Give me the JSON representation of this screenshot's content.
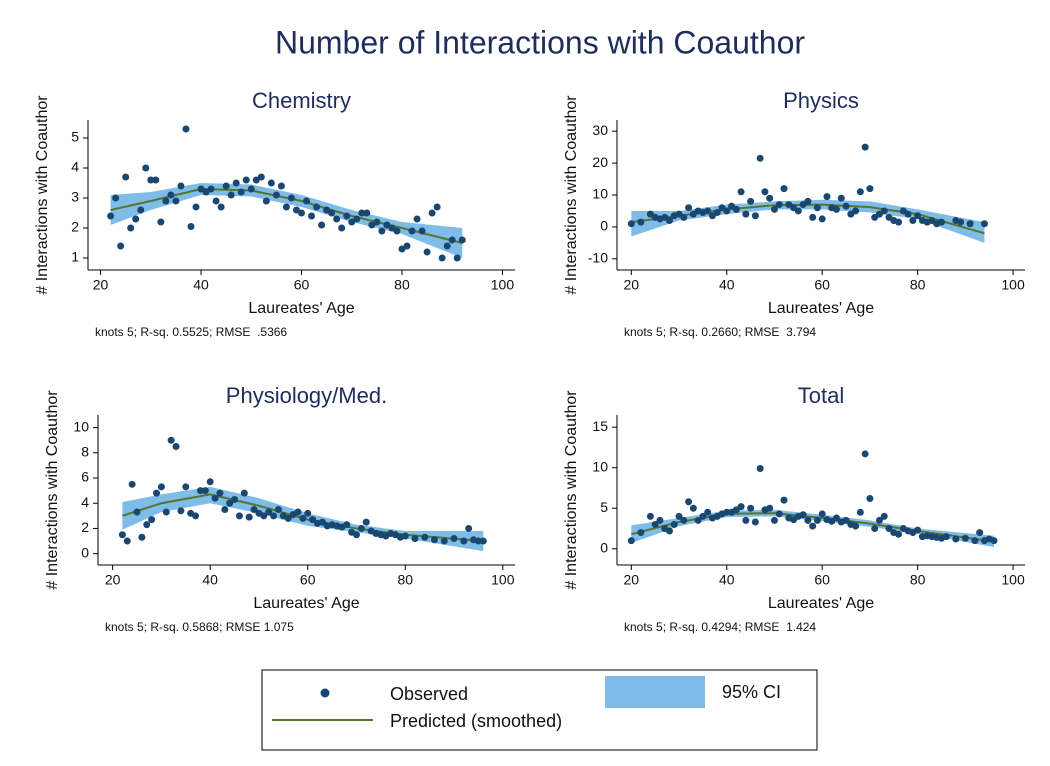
{
  "title": "Number of Interactions with Coauthor",
  "legend": [
    "Observed",
    "Predicted (smoothed)",
    "95% CI"
  ],
  "chart_data": [
    {
      "type": "scatter",
      "title": "Chemistry",
      "x_label": "Laureates' Age",
      "y_label": "# Interactions with Coauthor",
      "note": "knots 5; R-sq. 0.5525; RMSE  .5366",
      "xlim": [
        17.5,
        102.5
      ],
      "xticks": [
        20,
        40,
        60,
        80,
        100
      ],
      "ylim": [
        0.6,
        5.6
      ],
      "yticks": [
        1,
        2,
        3,
        4,
        5
      ],
      "series": [
        {
          "type": "band",
          "color": "#7fbde8",
          "x": [
            22,
            30,
            40,
            50,
            60,
            70,
            80,
            92
          ],
          "lower": [
            2.1,
            2.6,
            3.1,
            3.05,
            2.7,
            2.2,
            1.8,
            1.0
          ],
          "upper": [
            3.1,
            3.2,
            3.5,
            3.45,
            3.1,
            2.6,
            2.2,
            2.0
          ]
        },
        {
          "type": "line",
          "color": "#55752f",
          "x": [
            22,
            30,
            40,
            50,
            60,
            70,
            80,
            92
          ],
          "values": [
            2.6,
            2.9,
            3.3,
            3.25,
            2.9,
            2.4,
            2.0,
            1.5
          ]
        },
        {
          "type": "dots",
          "color": "#1a476f",
          "x": [
            22,
            23,
            24,
            25,
            26,
            27,
            28,
            29,
            30,
            31,
            32,
            33,
            34,
            35,
            36,
            37,
            38,
            39,
            40,
            41,
            42,
            43,
            44,
            45,
            46,
            47,
            48,
            49,
            50,
            51,
            52,
            53,
            54,
            55,
            56,
            57,
            58,
            59,
            60,
            61,
            62,
            63,
            64,
            65,
            66,
            67,
            68,
            69,
            70,
            71,
            72,
            73,
            74,
            75,
            76,
            77,
            78,
            79,
            80,
            81,
            82,
            83,
            84,
            85,
            86,
            87,
            88,
            89,
            90,
            91,
            92
          ],
          "values": [
            2.4,
            3.0,
            1.4,
            3.7,
            2.0,
            2.3,
            2.6,
            4.0,
            3.6,
            3.6,
            2.2,
            2.9,
            3.1,
            2.9,
            3.4,
            5.3,
            2.05,
            2.7,
            3.3,
            3.2,
            3.3,
            2.9,
            2.7,
            3.4,
            3.1,
            3.5,
            3.2,
            3.6,
            3.3,
            3.6,
            3.7,
            2.9,
            3.5,
            3.1,
            3.4,
            2.7,
            3.0,
            2.6,
            2.5,
            2.9,
            2.4,
            2.7,
            2.1,
            2.6,
            2.5,
            2.3,
            2.0,
            2.4,
            2.2,
            2.3,
            2.5,
            2.5,
            2.1,
            2.2,
            1.9,
            2.1,
            2.0,
            1.9,
            1.3,
            1.4,
            1.9,
            2.3,
            1.9,
            1.2,
            2.5,
            2.7,
            1.0,
            1.4,
            1.6,
            1.0,
            1.6
          ]
        }
      ]
    },
    {
      "type": "scatter",
      "title": "Physics",
      "x_label": "Laureates' Age",
      "y_label": "# Interactions with Coauthor",
      "note": "knots 5; R-sq. 0.2660; RMSE  3.794",
      "xlim": [
        17,
        102.5
      ],
      "xticks": [
        20,
        40,
        60,
        80,
        100
      ],
      "ylim": [
        -13.5,
        33.5
      ],
      "yticks": [
        -10,
        0,
        10,
        20,
        30
      ],
      "series": [
        {
          "type": "band",
          "color": "#7fbde8",
          "x": [
            20,
            30,
            40,
            50,
            60,
            70,
            80,
            94
          ],
          "lower": [
            -3,
            2,
            4,
            5.5,
            5.5,
            4.5,
            2.5,
            -5
          ],
          "upper": [
            5,
            5,
            7,
            8,
            8.5,
            8,
            5.5,
            1.5
          ]
        },
        {
          "type": "line",
          "color": "#55752f",
          "x": [
            20,
            30,
            40,
            50,
            60,
            70,
            80,
            94
          ],
          "values": [
            1.5,
            3.5,
            5.5,
            6.8,
            7.0,
            6.2,
            4.0,
            -2
          ]
        },
        {
          "type": "dots",
          "color": "#1a476f",
          "x": [
            20,
            22,
            24,
            25,
            26,
            27,
            28,
            29,
            30,
            31,
            32,
            33,
            34,
            35,
            36,
            37,
            38,
            39,
            40,
            41,
            42,
            43,
            44,
            45,
            46,
            47,
            48,
            49,
            50,
            51,
            52,
            53,
            54,
            55,
            56,
            57,
            58,
            59,
            60,
            61,
            62,
            63,
            64,
            65,
            66,
            67,
            68,
            69,
            70,
            71,
            72,
            73,
            74,
            75,
            76,
            77,
            78,
            79,
            80,
            81,
            82,
            83,
            84,
            85,
            88,
            89,
            91,
            94
          ],
          "values": [
            1,
            1.5,
            4,
            3,
            2.5,
            3,
            2,
            3.5,
            4,
            3,
            6,
            4,
            5,
            4.5,
            5,
            3.5,
            4.5,
            6,
            5,
            6.5,
            5.5,
            11,
            4,
            8,
            3.5,
            21.5,
            11,
            9,
            5.5,
            7,
            12,
            7,
            6,
            5,
            7,
            8,
            3,
            6,
            2.5,
            9.5,
            6,
            5.5,
            9,
            6.5,
            4,
            5,
            11,
            25,
            12,
            3,
            4,
            5,
            3,
            2,
            1.5,
            5,
            4,
            2,
            3.5,
            2,
            1.5,
            2,
            1,
            1.5,
            2,
            1.5,
            1,
            1
          ]
        }
      ]
    },
    {
      "type": "scatter",
      "title": "Physiology/Med.",
      "x_label": "Laureates' Age",
      "y_label": "# Interactions with Coauthor",
      "note": "knots 5; R-sq. 0.5868; RMSE 1.075",
      "xlim": [
        17,
        102.5
      ],
      "xticks": [
        20,
        40,
        60,
        80,
        100
      ],
      "ylim": [
        -0.9,
        11
      ],
      "yticks": [
        0,
        2,
        4,
        6,
        8,
        10
      ],
      "series": [
        {
          "type": "band",
          "color": "#7fbde8",
          "x": [
            22,
            30,
            40,
            50,
            60,
            70,
            80,
            96
          ],
          "lower": [
            1.9,
            3.3,
            4.0,
            3.2,
            2.2,
            1.7,
            1.2,
            0.2
          ],
          "upper": [
            4.1,
            4.7,
            5.3,
            4.4,
            3.2,
            2.3,
            1.8,
            1.8
          ]
        },
        {
          "type": "line",
          "color": "#55752f",
          "x": [
            22,
            30,
            40,
            50,
            60,
            70,
            80,
            96
          ],
          "values": [
            3.0,
            4.0,
            4.7,
            3.8,
            2.7,
            2.0,
            1.5,
            1.0
          ]
        },
        {
          "type": "dots",
          "color": "#1a476f",
          "x": [
            22,
            23,
            24,
            25,
            26,
            27,
            28,
            29,
            30,
            31,
            32,
            33,
            34,
            35,
            36,
            37,
            38,
            39,
            40,
            41,
            42,
            43,
            44,
            45,
            46,
            47,
            48,
            49,
            50,
            51,
            52,
            53,
            54,
            55,
            56,
            57,
            58,
            59,
            60,
            61,
            62,
            63,
            64,
            65,
            66,
            67,
            68,
            69,
            70,
            71,
            72,
            73,
            74,
            75,
            76,
            77,
            78,
            79,
            80,
            82,
            84,
            86,
            88,
            90,
            92,
            93,
            94,
            95,
            96
          ],
          "values": [
            1.5,
            1.0,
            5.5,
            3.3,
            1.3,
            2.3,
            2.7,
            4.8,
            5.3,
            3.3,
            9.0,
            8.5,
            3.4,
            5.3,
            3.2,
            3.0,
            5.0,
            5.0,
            5.7,
            4.4,
            4.8,
            3.5,
            4.0,
            4.3,
            3.0,
            4.8,
            2.9,
            3.5,
            3.2,
            3.0,
            3.3,
            3.0,
            3.5,
            3.0,
            2.8,
            3.1,
            3.3,
            2.8,
            3.2,
            2.7,
            2.4,
            2.5,
            2.2,
            2.3,
            2.2,
            2.1,
            2.3,
            1.7,
            1.5,
            2.0,
            2.5,
            1.8,
            1.6,
            1.5,
            1.4,
            1.6,
            1.5,
            1.3,
            1.4,
            1.2,
            1.3,
            1.1,
            1.0,
            1.2,
            1.0,
            2.0,
            1.1,
            1.0,
            1.0
          ]
        }
      ]
    },
    {
      "type": "scatter",
      "title": "Total",
      "x_label": "Laureates' Age",
      "y_label": "# Interactions with Coauthor",
      "note": "knots 5; R-sq. 0.4294; RMSE  1.424",
      "xlim": [
        17,
        102.5
      ],
      "xticks": [
        20,
        40,
        60,
        80,
        100
      ],
      "ylim": [
        -2,
        16.5
      ],
      "yticks": [
        0,
        5,
        10,
        15
      ],
      "series": [
        {
          "type": "band",
          "color": "#7fbde8",
          "x": [
            20,
            30,
            40,
            50,
            60,
            70,
            80,
            96
          ],
          "lower": [
            0.7,
            2.8,
            3.9,
            4.0,
            3.4,
            2.7,
            1.9,
            0.2
          ],
          "upper": [
            2.9,
            3.8,
            4.7,
            4.8,
            4.2,
            3.5,
            2.5,
            1.6
          ]
        },
        {
          "type": "line",
          "color": "#55752f",
          "x": [
            20,
            30,
            40,
            50,
            60,
            70,
            80,
            96
          ],
          "values": [
            1.8,
            3.3,
            4.3,
            4.4,
            3.8,
            3.1,
            2.2,
            0.9
          ]
        },
        {
          "type": "dots",
          "color": "#1a476f",
          "x": [
            20,
            22,
            24,
            25,
            26,
            27,
            28,
            29,
            30,
            31,
            32,
            33,
            34,
            35,
            36,
            37,
            38,
            39,
            40,
            41,
            42,
            43,
            44,
            45,
            46,
            47,
            48,
            49,
            50,
            51,
            52,
            53,
            54,
            55,
            56,
            57,
            58,
            59,
            60,
            61,
            62,
            63,
            64,
            65,
            66,
            67,
            68,
            69,
            70,
            71,
            72,
            73,
            74,
            75,
            76,
            77,
            78,
            79,
            80,
            81,
            82,
            83,
            84,
            85,
            86,
            88,
            90,
            92,
            93,
            94,
            95,
            96
          ],
          "values": [
            1.0,
            2.0,
            4.0,
            3.0,
            3.5,
            2.5,
            2.2,
            3.0,
            4.0,
            3.5,
            5.8,
            5.0,
            3.5,
            4.0,
            4.5,
            3.8,
            4.0,
            4.3,
            4.5,
            4.5,
            4.8,
            5.2,
            3.5,
            5.0,
            3.3,
            9.9,
            4.8,
            5.0,
            3.5,
            4.3,
            6.0,
            3.8,
            3.6,
            4.0,
            4.2,
            3.5,
            2.8,
            3.5,
            4.3,
            3.6,
            3.4,
            3.8,
            3.3,
            3.5,
            3.0,
            2.8,
            4.5,
            11.7,
            6.2,
            2.5,
            3.5,
            4.0,
            2.5,
            2.0,
            1.8,
            2.5,
            2.2,
            2.0,
            2.3,
            1.5,
            1.6,
            1.5,
            1.4,
            1.3,
            1.5,
            1.2,
            1.3,
            1.0,
            2.0,
            1.0,
            1.2,
            1.0
          ]
        }
      ]
    }
  ]
}
